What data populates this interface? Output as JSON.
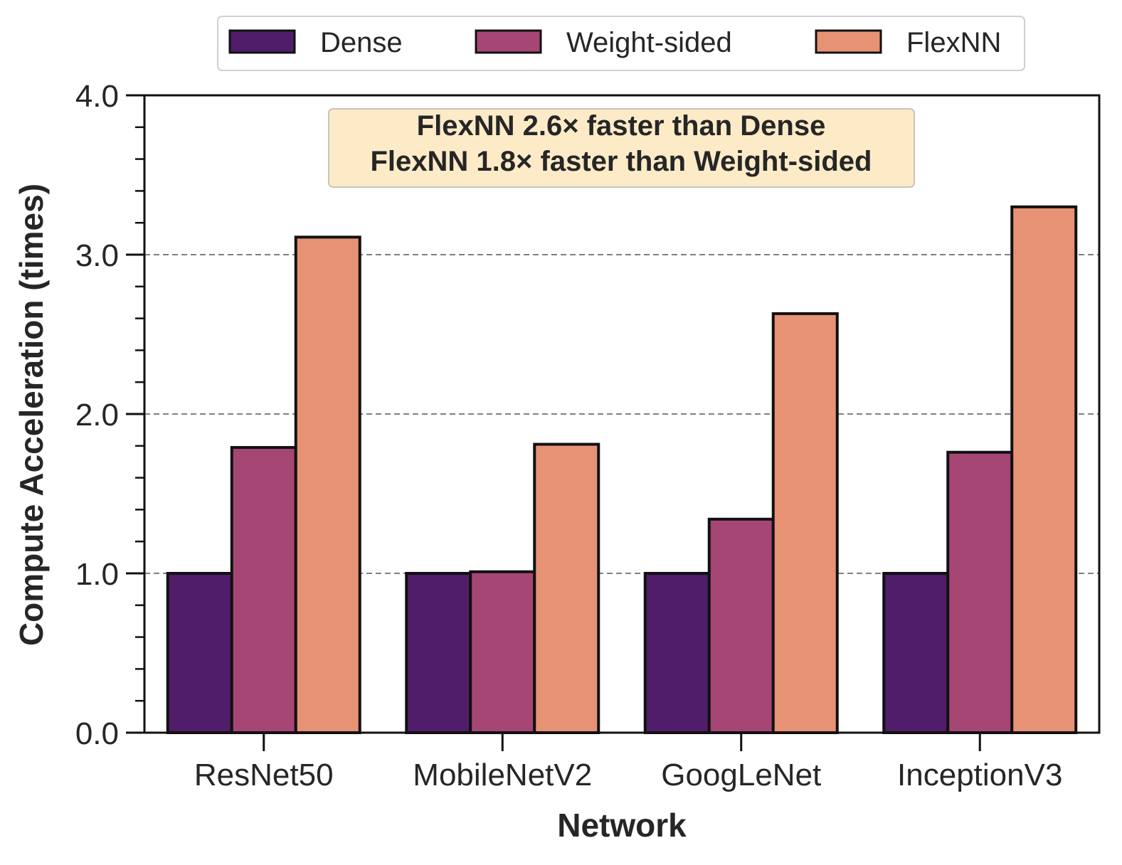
{
  "chart_data": {
    "type": "bar",
    "title": "",
    "xlabel": "Network",
    "ylabel": "Compute Acceleration (times)",
    "categories": [
      "ResNet50",
      "MobileNetV2",
      "GoogLeNet",
      "InceptionV3"
    ],
    "series": [
      {
        "name": "Dense",
        "color": "#501d6b",
        "values": [
          1.0,
          1.0,
          1.0,
          1.0
        ]
      },
      {
        "name": "Weight-sided",
        "color": "#a64675",
        "values": [
          1.79,
          1.01,
          1.34,
          1.76
        ]
      },
      {
        "name": "FlexNN",
        "color": "#e79275",
        "values": [
          3.11,
          1.81,
          2.63,
          3.3
        ]
      }
    ],
    "ylim": [
      0,
      4.0
    ],
    "yticks": [
      0.0,
      1.0,
      2.0,
      3.0,
      4.0
    ],
    "ytick_labels": [
      "0.0",
      "1.0",
      "2.0",
      "3.0",
      "4.0"
    ],
    "minor_tick_step": 0.2,
    "grid": "horizontal dashed at major ticks",
    "legend_placement": "top-center",
    "annotations": [
      "FlexNN 2.6× faster than Dense",
      "FlexNN 1.8× faster than Weight-sided"
    ],
    "annotation_box_color": "#fdebc8"
  }
}
